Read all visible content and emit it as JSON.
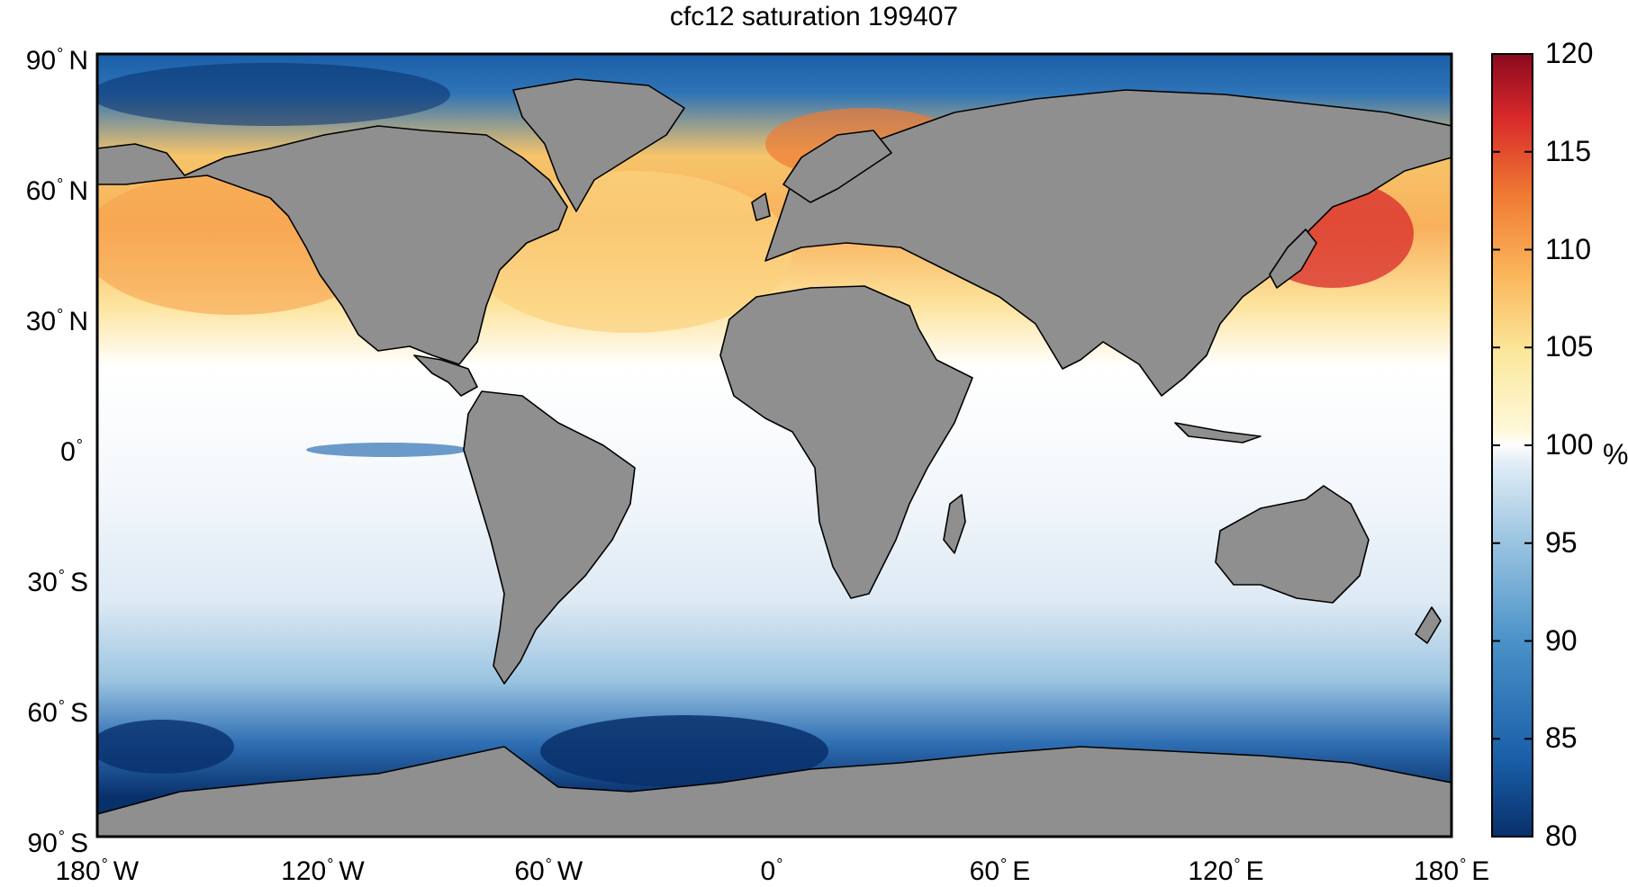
{
  "title": "cfc12 saturation 199407",
  "map": {
    "x_ticks": [
      "180",
      "120",
      "60",
      "0",
      "60",
      "120",
      "180"
    ],
    "x_hemi": [
      "W",
      "W",
      "W",
      "",
      "E",
      "E",
      "E"
    ],
    "y_ticks": [
      "90",
      "60",
      "30",
      "0",
      "30",
      "60",
      "90"
    ],
    "y_hemi": [
      "N",
      "N",
      "N",
      "",
      "S",
      "S",
      "S"
    ],
    "lon_range": [
      -180,
      180
    ],
    "lat_range": [
      -90,
      90
    ],
    "projection": "equirectangular",
    "land_color": "#8f8f8f"
  },
  "colorbar": {
    "ticks": [
      "80",
      "85",
      "90",
      "95",
      "100",
      "105",
      "110",
      "115",
      "120"
    ],
    "unit": "%",
    "range": [
      80,
      120
    ],
    "colors_low": [
      "#08306b",
      "#1a5fa8",
      "#4a92c8",
      "#9cc5e1",
      "#dce9f5",
      "#ffffff"
    ],
    "colors_high": [
      "#ffffff",
      "#fbe79a",
      "#fbb45a",
      "#f07a33",
      "#d8282a",
      "#8a0a1f"
    ]
  }
}
